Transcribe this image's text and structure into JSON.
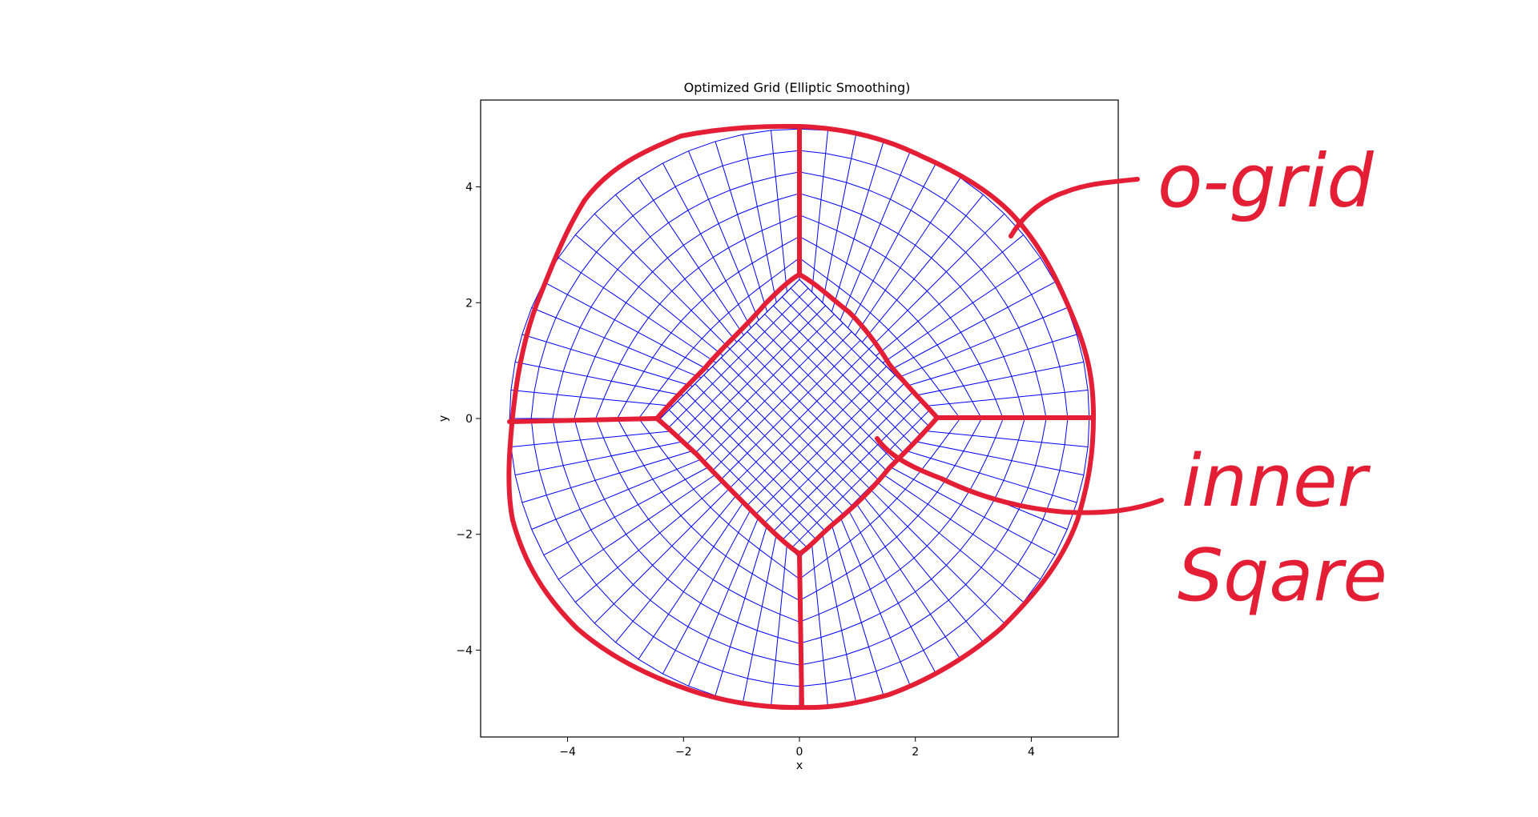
{
  "chart_data": {
    "type": "mesh",
    "title": "Optimized Grid (Elliptic Smoothing)",
    "xlabel": "x",
    "ylabel": "y",
    "xlim": [
      -5.5,
      5.5
    ],
    "ylim": [
      -5.5,
      5.5
    ],
    "xticks": [
      -4,
      -2,
      0,
      2,
      4
    ],
    "yticks": [
      -4,
      -2,
      0,
      2,
      4
    ],
    "xtick_labels": [
      "−4",
      "−2",
      "0",
      "2",
      "4"
    ],
    "ytick_labels": [
      "−4",
      "−2",
      "0",
      "2",
      "4"
    ],
    "grid": false,
    "outer_radius": 5,
    "inner_square_half_diagonal": 2.4,
    "inner_grid_divisions": 16,
    "o_grid_radial_layers": 7,
    "o_grid_spokes": 64,
    "mesh_color": "#0000ff"
  },
  "annotations": {
    "color": "#e31e35",
    "o_grid_label": "o-grid",
    "inner_label_line1": "inner",
    "inner_label_line2": "Sqare"
  }
}
